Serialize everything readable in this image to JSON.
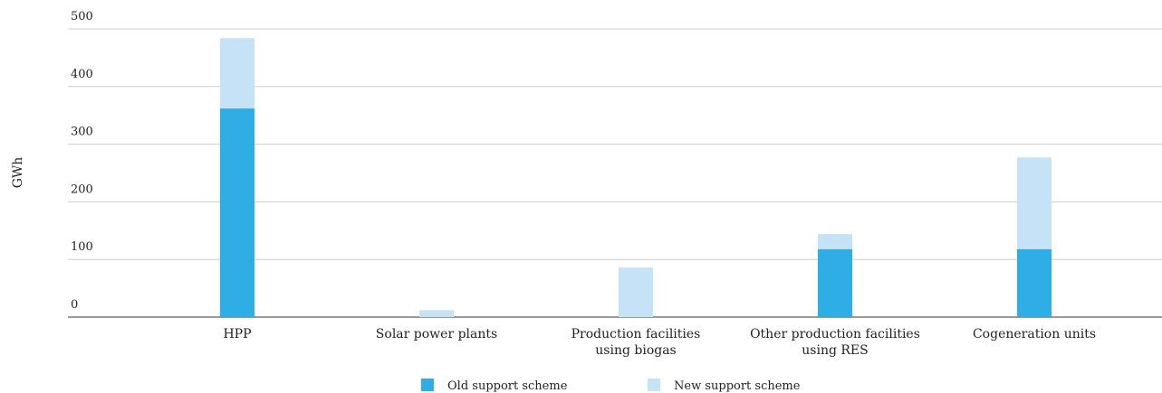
{
  "chart_data": {
    "type": "bar",
    "stacked": true,
    "y_label": "GWh",
    "categories": [
      "HPP",
      "Solar power plants",
      "Production facilities\nusing biogas",
      "Other production facilities\nusing RES",
      "Cogeneration units"
    ],
    "series": [
      {
        "name": "Old support scheme",
        "color": "#2eaee4",
        "values": [
          362,
          0,
          0,
          118,
          118
        ]
      },
      {
        "name": "New support scheme",
        "color": "#c5e2f7",
        "values": [
          122,
          12,
          86,
          26,
          159
        ]
      }
    ],
    "ylim": [
      0,
      500
    ],
    "yticks": [
      0,
      100,
      200,
      300,
      400,
      500
    ],
    "grid": true,
    "legend": "bottom"
  }
}
